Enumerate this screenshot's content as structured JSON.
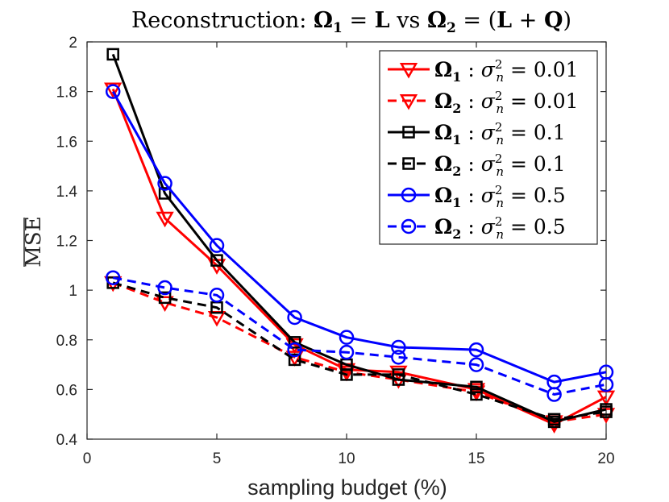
{
  "chart_data": {
    "type": "line",
    "title": "Reconstruction: Ω₁ = L vs Ω₂ = (L + Q)",
    "xlabel": "sampling budget (%)",
    "ylabel": "MSE",
    "xlim": [
      0,
      20
    ],
    "ylim": [
      0.4,
      2
    ],
    "xticks": [
      0,
      5,
      10,
      15,
      20
    ],
    "yticks": [
      0.4,
      0.6,
      0.8,
      1,
      1.2,
      1.4,
      1.6,
      1.8,
      2
    ],
    "ytick_labels": [
      "0.4",
      "0.6",
      "0.8",
      "1",
      "1.2",
      "1.4",
      "1.6",
      "1.8",
      "2"
    ],
    "x": [
      1,
      3,
      5,
      8,
      10,
      12,
      15,
      18,
      20
    ],
    "legend_position": "top-right",
    "grid": false,
    "series": [
      {
        "name": "Ω₁ : σ²ₙ = 0.01",
        "omega": "Ω₁",
        "sigma": "0.01",
        "color": "#ff0000",
        "dash": "solid",
        "marker": "triangle-down",
        "values": [
          1.81,
          1.29,
          1.1,
          0.78,
          0.68,
          0.67,
          0.6,
          0.46,
          0.57
        ]
      },
      {
        "name": "Ω₂ : σ²ₙ = 0.01",
        "omega": "Ω₂",
        "sigma": "0.01",
        "color": "#ff0000",
        "dash": "dashed",
        "marker": "triangle-down",
        "values": [
          1.03,
          0.95,
          0.89,
          0.73,
          0.67,
          0.64,
          0.59,
          0.47,
          0.5
        ]
      },
      {
        "name": "Ω₁ : σ²ₙ = 0.1",
        "omega": "Ω₁",
        "sigma": "0.1",
        "color": "#000000",
        "dash": "solid",
        "marker": "square",
        "values": [
          1.95,
          1.39,
          1.12,
          0.79,
          0.7,
          0.64,
          0.61,
          0.47,
          0.52
        ]
      },
      {
        "name": "Ω₂ : σ²ₙ = 0.1",
        "omega": "Ω₂",
        "sigma": "0.1",
        "color": "#000000",
        "dash": "dashed",
        "marker": "square",
        "values": [
          1.03,
          0.97,
          0.93,
          0.72,
          0.66,
          0.66,
          0.58,
          0.48,
          0.51
        ]
      },
      {
        "name": "Ω₁ : σ²ₙ = 0.5",
        "omega": "Ω₁",
        "sigma": "0.5",
        "color": "#0000ff",
        "dash": "solid",
        "marker": "circle",
        "values": [
          1.8,
          1.43,
          1.18,
          0.89,
          0.81,
          0.77,
          0.76,
          0.63,
          0.67
        ]
      },
      {
        "name": "Ω₂ : σ²ₙ = 0.5",
        "omega": "Ω₂",
        "sigma": "0.5",
        "color": "#0000ff",
        "dash": "dashed",
        "marker": "circle",
        "values": [
          1.05,
          1.01,
          0.98,
          0.76,
          0.75,
          0.73,
          0.7,
          0.58,
          0.62
        ]
      }
    ]
  }
}
